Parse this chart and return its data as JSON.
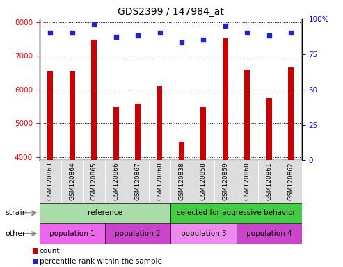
{
  "title": "GDS2399 / 147984_at",
  "samples": [
    "GSM120863",
    "GSM120864",
    "GSM120865",
    "GSM120866",
    "GSM120867",
    "GSM120868",
    "GSM120838",
    "GSM120858",
    "GSM120859",
    "GSM120860",
    "GSM120861",
    "GSM120862"
  ],
  "counts": [
    6550,
    6560,
    7480,
    5480,
    5580,
    6100,
    4450,
    5480,
    7520,
    6600,
    5750,
    6650
  ],
  "percentile_ranks": [
    90,
    90,
    96,
    87,
    88,
    90,
    83,
    85,
    95,
    90,
    88,
    90
  ],
  "ylim_left": [
    3900,
    8100
  ],
  "ylim_right": [
    0,
    100
  ],
  "yticks_left": [
    4000,
    5000,
    6000,
    7000,
    8000
  ],
  "yticks_right": [
    0,
    25,
    50,
    75,
    100
  ],
  "bar_color": "#cc0000",
  "dot_color": "#2222cc",
  "strain_groups": [
    {
      "label": "reference",
      "start": 0,
      "end": 6,
      "color": "#aaddaa"
    },
    {
      "label": "selected for aggressive behavior",
      "start": 6,
      "end": 12,
      "color": "#44cc44"
    }
  ],
  "other_groups": [
    {
      "label": "population 1",
      "start": 0,
      "end": 3,
      "color": "#ee66ee"
    },
    {
      "label": "population 2",
      "start": 3,
      "end": 6,
      "color": "#cc44cc"
    },
    {
      "label": "population 3",
      "start": 6,
      "end": 9,
      "color": "#ee88ee"
    },
    {
      "label": "population 4",
      "start": 9,
      "end": 12,
      "color": "#cc44cc"
    }
  ],
  "legend_red_label": "count",
  "legend_blue_label": "percentile rank within the sample",
  "strain_label": "strain",
  "other_label": "other",
  "tick_bg_color": "#dddddd",
  "border_color": "#000000"
}
